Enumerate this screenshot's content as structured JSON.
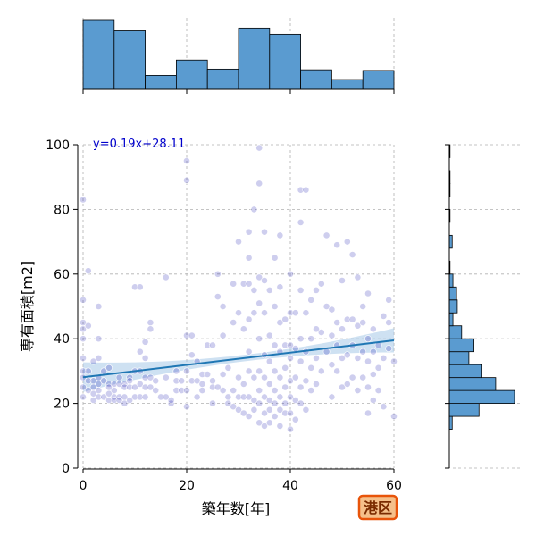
{
  "chart_data": {
    "type": "scatter",
    "xlabel": "築年数[年]",
    "ylabel": "専有面積[m2]",
    "xlim": [
      0,
      60
    ],
    "ylim": [
      0,
      100
    ],
    "xticks": [
      "0",
      "20",
      "40",
      "60"
    ],
    "yticks": [
      "0",
      "20",
      "40",
      "60",
      "80",
      "100"
    ],
    "grid": true,
    "regression": {
      "slope": 0.19,
      "intercept": 28.11,
      "label": "y=0.19x+28.11"
    },
    "badge": "港区",
    "colors": {
      "points": "#2020b0",
      "regression_line": "#1f77b4",
      "confidence_band": "#a6c8e8",
      "histogram": "#5a9bd0",
      "badge_fill": "#f5c08a",
      "badge_border": "#e8540a"
    },
    "x_histogram": {
      "bin_edges": [
        0,
        6,
        12,
        18,
        24,
        30,
        36,
        42,
        48,
        54,
        60
      ],
      "counts": [
        100,
        84,
        20,
        42,
        29,
        88,
        79,
        28,
        14,
        27
      ]
    },
    "y_histogram": {
      "bin_edges": [
        12,
        16,
        20,
        24,
        28,
        32,
        36,
        40,
        44,
        48,
        52,
        56,
        60,
        64,
        68,
        72,
        76,
        80,
        84,
        88,
        92,
        96,
        100
      ],
      "counts": [
        4,
        41,
        90,
        64,
        44,
        27,
        34,
        17,
        5,
        11,
        10,
        5,
        1,
        0,
        4,
        0,
        1,
        0,
        1,
        1,
        0,
        1
      ]
    },
    "points": [
      [
        0,
        83
      ],
      [
        0,
        52
      ],
      [
        0,
        45
      ],
      [
        0,
        43
      ],
      [
        0,
        40
      ],
      [
        0,
        34
      ],
      [
        0,
        30
      ],
      [
        0,
        28
      ],
      [
        0,
        25
      ],
      [
        0,
        22
      ],
      [
        1,
        61
      ],
      [
        1,
        44
      ],
      [
        1,
        30
      ],
      [
        1,
        27
      ],
      [
        1,
        24
      ],
      [
        2,
        33
      ],
      [
        2,
        27
      ],
      [
        2,
        25
      ],
      [
        2,
        23
      ],
      [
        2,
        21
      ],
      [
        3,
        50
      ],
      [
        3,
        40
      ],
      [
        3,
        34
      ],
      [
        3,
        28
      ],
      [
        3,
        26
      ],
      [
        3,
        24
      ],
      [
        3,
        22
      ],
      [
        4,
        30
      ],
      [
        4,
        27
      ],
      [
        4,
        22
      ],
      [
        5,
        31
      ],
      [
        5,
        26
      ],
      [
        5,
        25
      ],
      [
        5,
        23
      ],
      [
        5,
        21
      ],
      [
        6,
        26
      ],
      [
        6,
        24
      ],
      [
        6,
        22
      ],
      [
        6,
        21
      ],
      [
        7,
        28
      ],
      [
        7,
        26
      ],
      [
        7,
        22
      ],
      [
        7,
        21
      ],
      [
        8,
        26
      ],
      [
        8,
        25
      ],
      [
        8,
        22
      ],
      [
        8,
        20
      ],
      [
        9,
        28
      ],
      [
        9,
        27
      ],
      [
        9,
        25
      ],
      [
        9,
        21
      ],
      [
        10,
        56
      ],
      [
        10,
        30
      ],
      [
        10,
        25
      ],
      [
        10,
        22
      ],
      [
        11,
        56
      ],
      [
        11,
        36
      ],
      [
        11,
        30
      ],
      [
        11,
        26
      ],
      [
        11,
        22
      ],
      [
        12,
        39
      ],
      [
        12,
        34
      ],
      [
        12,
        28
      ],
      [
        12,
        25
      ],
      [
        12,
        22
      ],
      [
        13,
        45
      ],
      [
        13,
        43
      ],
      [
        13,
        28
      ],
      [
        13,
        25
      ],
      [
        14,
        27
      ],
      [
        14,
        24
      ],
      [
        15,
        22
      ],
      [
        16,
        59
      ],
      [
        16,
        28
      ],
      [
        16,
        22
      ],
      [
        17,
        20
      ],
      [
        17,
        21
      ],
      [
        18,
        30
      ],
      [
        18,
        27
      ],
      [
        18,
        24
      ],
      [
        19,
        27
      ],
      [
        19,
        24
      ],
      [
        20,
        95
      ],
      [
        20,
        89
      ],
      [
        20,
        41
      ],
      [
        20,
        30
      ],
      [
        20,
        24
      ],
      [
        20,
        19
      ],
      [
        21,
        41
      ],
      [
        21,
        35
      ],
      [
        21,
        27
      ],
      [
        22,
        33
      ],
      [
        22,
        27
      ],
      [
        22,
        22
      ],
      [
        23,
        29
      ],
      [
        23,
        26
      ],
      [
        23,
        24
      ],
      [
        24,
        38
      ],
      [
        24,
        29
      ],
      [
        25,
        38
      ],
      [
        25,
        27
      ],
      [
        25,
        25
      ],
      [
        25,
        20
      ],
      [
        26,
        60
      ],
      [
        26,
        53
      ],
      [
        26,
        25
      ],
      [
        27,
        50
      ],
      [
        27,
        41
      ],
      [
        27,
        29
      ],
      [
        27,
        24
      ],
      [
        28,
        31
      ],
      [
        28,
        22
      ],
      [
        28,
        20
      ],
      [
        29,
        57
      ],
      [
        29,
        45
      ],
      [
        29,
        24
      ],
      [
        29,
        19
      ],
      [
        30,
        70
      ],
      [
        30,
        48
      ],
      [
        30,
        28
      ],
      [
        30,
        22
      ],
      [
        30,
        18
      ],
      [
        31,
        57
      ],
      [
        31,
        43
      ],
      [
        31,
        26
      ],
      [
        31,
        22
      ],
      [
        31,
        17
      ],
      [
        32,
        73
      ],
      [
        32,
        65
      ],
      [
        32,
        57
      ],
      [
        32,
        46
      ],
      [
        32,
        36
      ],
      [
        32,
        30
      ],
      [
        32,
        22
      ],
      [
        32,
        16
      ],
      [
        33,
        80
      ],
      [
        33,
        55
      ],
      [
        33,
        48
      ],
      [
        33,
        28
      ],
      [
        33,
        21
      ],
      [
        33,
        18
      ],
      [
        34,
        99
      ],
      [
        34,
        88
      ],
      [
        34,
        59
      ],
      [
        34,
        51
      ],
      [
        34,
        40
      ],
      [
        34,
        30
      ],
      [
        34,
        24
      ],
      [
        34,
        20
      ],
      [
        34,
        14
      ],
      [
        35,
        73
      ],
      [
        35,
        58
      ],
      [
        35,
        48
      ],
      [
        35,
        35
      ],
      [
        35,
        28
      ],
      [
        35,
        22
      ],
      [
        35,
        17
      ],
      [
        35,
        13
      ],
      [
        36,
        55
      ],
      [
        36,
        41
      ],
      [
        36,
        33
      ],
      [
        36,
        26
      ],
      [
        36,
        21
      ],
      [
        36,
        18
      ],
      [
        36,
        14
      ],
      [
        37,
        65
      ],
      [
        37,
        50
      ],
      [
        37,
        38
      ],
      [
        37,
        30
      ],
      [
        37,
        24
      ],
      [
        37,
        20
      ],
      [
        37,
        16
      ],
      [
        38,
        72
      ],
      [
        38,
        56
      ],
      [
        38,
        45
      ],
      [
        38,
        36
      ],
      [
        38,
        28
      ],
      [
        38,
        22
      ],
      [
        38,
        18
      ],
      [
        38,
        13
      ],
      [
        39,
        46
      ],
      [
        39,
        38
      ],
      [
        39,
        31
      ],
      [
        39,
        25
      ],
      [
        39,
        20
      ],
      [
        39,
        17
      ],
      [
        40,
        60
      ],
      [
        40,
        48
      ],
      [
        40,
        38
      ],
      [
        40,
        34
      ],
      [
        40,
        27
      ],
      [
        40,
        22
      ],
      [
        40,
        17
      ],
      [
        40,
        12
      ],
      [
        41,
        48
      ],
      [
        41,
        37
      ],
      [
        41,
        28
      ],
      [
        41,
        21
      ],
      [
        41,
        15
      ],
      [
        42,
        86
      ],
      [
        42,
        76
      ],
      [
        42,
        55
      ],
      [
        42,
        40
      ],
      [
        42,
        33
      ],
      [
        42,
        25
      ],
      [
        42,
        20
      ],
      [
        43,
        86
      ],
      [
        43,
        48
      ],
      [
        43,
        36
      ],
      [
        43,
        27
      ],
      [
        43,
        18
      ],
      [
        44,
        52
      ],
      [
        44,
        40
      ],
      [
        44,
        31
      ],
      [
        44,
        24
      ],
      [
        45,
        55
      ],
      [
        45,
        43
      ],
      [
        45,
        34
      ],
      [
        45,
        26
      ],
      [
        46,
        57
      ],
      [
        46,
        42
      ],
      [
        46,
        30
      ],
      [
        47,
        72
      ],
      [
        47,
        50
      ],
      [
        47,
        36
      ],
      [
        48,
        49
      ],
      [
        48,
        41
      ],
      [
        48,
        32
      ],
      [
        48,
        22
      ],
      [
        49,
        69
      ],
      [
        49,
        45
      ],
      [
        49,
        38
      ],
      [
        49,
        30
      ],
      [
        50,
        58
      ],
      [
        50,
        43
      ],
      [
        50,
        34
      ],
      [
        50,
        25
      ],
      [
        51,
        70
      ],
      [
        51,
        46
      ],
      [
        51,
        35
      ],
      [
        51,
        26
      ],
      [
        52,
        66
      ],
      [
        52,
        46
      ],
      [
        52,
        38
      ],
      [
        52,
        28
      ],
      [
        53,
        59
      ],
      [
        53,
        44
      ],
      [
        53,
        34
      ],
      [
        53,
        24
      ],
      [
        54,
        50
      ],
      [
        54,
        45
      ],
      [
        54,
        36
      ],
      [
        54,
        28
      ],
      [
        55,
        54
      ],
      [
        55,
        40
      ],
      [
        55,
        33
      ],
      [
        55,
        25
      ],
      [
        55,
        17
      ],
      [
        56,
        43
      ],
      [
        56,
        36
      ],
      [
        56,
        29
      ],
      [
        56,
        21
      ],
      [
        57,
        38
      ],
      [
        57,
        31
      ],
      [
        57,
        24
      ],
      [
        58,
        47
      ],
      [
        58,
        34
      ],
      [
        58,
        19
      ],
      [
        59,
        52
      ],
      [
        59,
        45
      ],
      [
        59,
        37
      ],
      [
        60,
        33
      ],
      [
        60,
        16
      ]
    ]
  }
}
